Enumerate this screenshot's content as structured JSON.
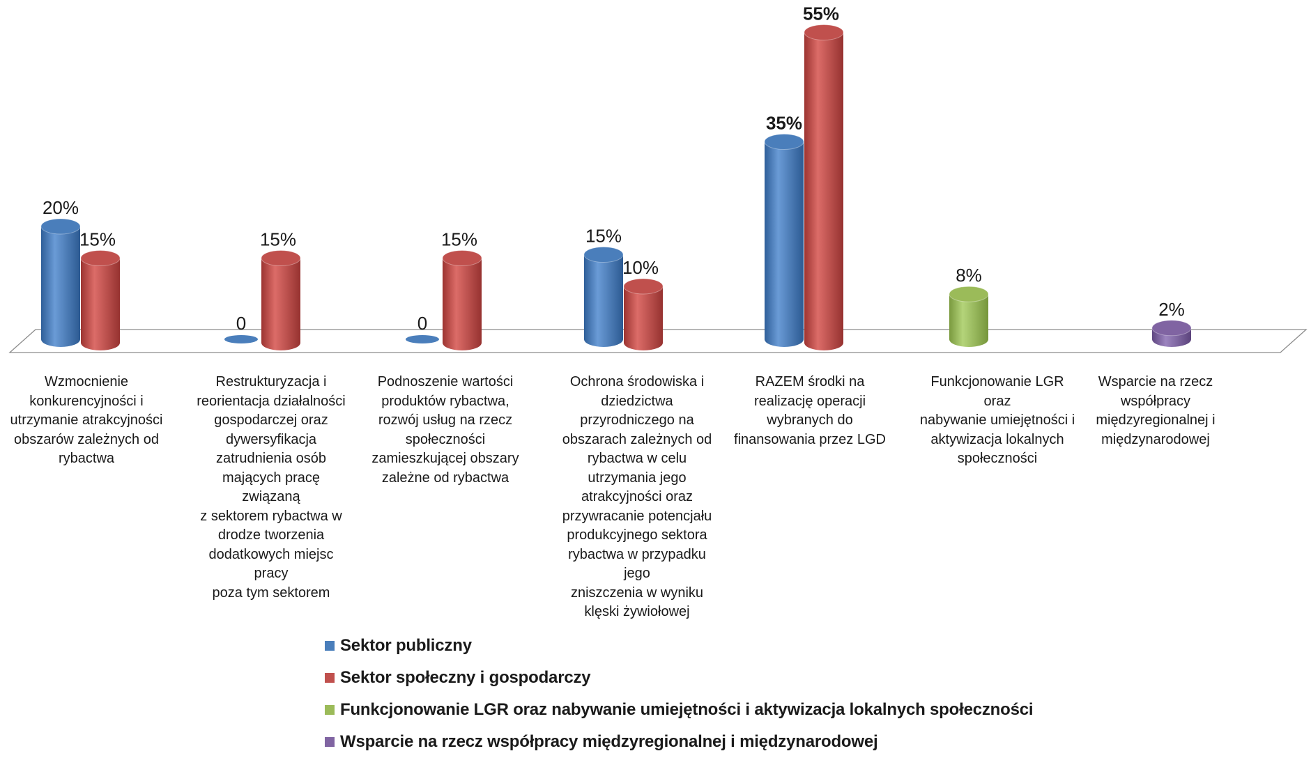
{
  "chart_data": {
    "type": "bar",
    "categories": [
      "Wzmocnienie konkurencyjności i utrzymanie atrakcyjności obszarów zależnych od rybactwa",
      "Restrukturyzacja i reorientacja działalności gospodarczej oraz dywersyfikacja zatrudnienia osób mających pracę związaną z sektorem rybactwa w drodze tworzenia dodatkowych miejsc pracy poza tym sektorem",
      "Podnoszenie wartości produktów rybactwa, rozwój usług na rzecz społeczności zamieszkującej obszary zależne od rybactwa",
      "Ochrona środowiska i dziedzictwa przyrodniczego na obszarach zależnych od rybactwa w celu utrzymania jego atrakcyjności oraz przywracanie potencjału produkcyjnego sektora rybactwa w przypadku jego zniszczenia w wyniku klęski żywiołowej",
      "RAZEM środki na realizację operacji wybranych do finansowania przez LGD",
      "Funkcjonowanie LGR oraz nabywanie umiejętności i aktywizacja lokalnych społeczności",
      "Wsparcie na rzecz współpracy międzyregionalnej i międzynarodowej"
    ],
    "category_lines": [
      [
        "Wzmocnienie",
        "konkurencyjności i",
        "utrzymanie atrakcyjności",
        "obszarów zależnych od",
        "rybactwa"
      ],
      [
        "Restrukturyzacja i",
        "reorientacja działalności",
        "gospodarczej oraz",
        "dywersyfikacja",
        "zatrudnienia osób",
        "mających pracę związaną",
        "z sektorem rybactwa w",
        "drodze tworzenia",
        "dodatkowych miejsc pracy",
        "poza tym sektorem"
      ],
      [
        "Podnoszenie wartości",
        "produktów rybactwa,",
        "rozwój usług na rzecz",
        "społeczności",
        "zamieszkującej obszary",
        "zależne od rybactwa"
      ],
      [
        "Ochrona środowiska i",
        "dziedzictwa",
        "przyrodniczego na",
        "obszarach zależnych od",
        "rybactwa w celu",
        "utrzymania jego",
        "atrakcyjności oraz",
        "przywracanie potencjału",
        "produkcyjnego sektora",
        "rybactwa w przypadku jego",
        "zniszczenia w wyniku",
        "klęski żywiołowej"
      ],
      [
        "RAZEM środki na",
        "realizację operacji",
        "wybranych do",
        "finansowania przez LGD"
      ],
      [
        "Funkcjonowanie LGR oraz",
        "nabywanie umiejętności i",
        "aktywizacja lokalnych",
        "społeczności"
      ],
      [
        "Wsparcie na rzecz",
        "współpracy",
        "międzyregionalnej i",
        "międzynarodowej"
      ]
    ],
    "series": [
      {
        "name": "Sektor publiczny",
        "color": "#4a7ebb",
        "values": [
          20,
          0,
          0,
          15,
          35,
          null,
          null
        ],
        "labels": [
          "20%",
          "0",
          "0",
          "15%",
          "35%",
          "",
          ""
        ]
      },
      {
        "name": "Sektor społeczny i gospodarczy",
        "color": "#c0504d",
        "values": [
          15,
          15,
          15,
          10,
          55,
          null,
          null
        ],
        "labels": [
          "15%",
          "15%",
          "15%",
          "10%",
          "55%",
          "",
          ""
        ]
      },
      {
        "name": "Funkcjonowanie LGR oraz nabywanie umiejętności i aktywizacja lokalnych społeczności",
        "color": "#9bbb59",
        "values": [
          null,
          null,
          null,
          null,
          null,
          8,
          null
        ],
        "labels": [
          "",
          "",
          "",
          "",
          "",
          "8%",
          ""
        ]
      },
      {
        "name": "Wsparcie na rzecz współpracy międzyregionalnej i międzynarodowej",
        "color": "#8064a2",
        "values": [
          null,
          null,
          null,
          null,
          null,
          null,
          2
        ],
        "labels": [
          "",
          "",
          "",
          "",
          "",
          "",
          "2%"
        ]
      }
    ],
    "bold_labels_category": 4,
    "ylim": [
      0,
      55
    ],
    "grid": false,
    "legend_position": "bottom"
  }
}
